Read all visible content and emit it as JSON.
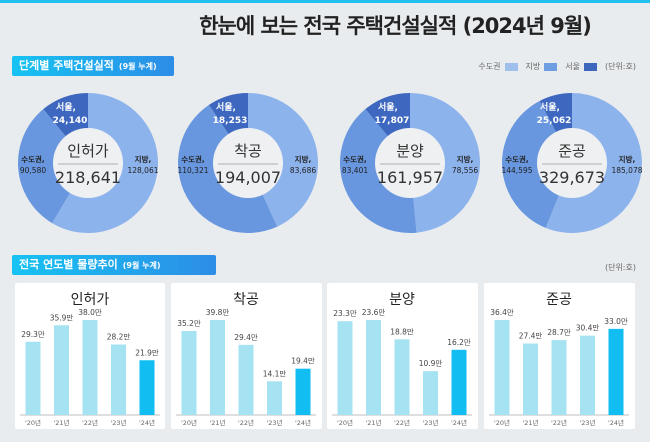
{
  "title": "한눈에 보는 전국 주택건설실적  (2024년 9월)",
  "section1": {
    "label": "단계별 주택건설실적",
    "sub": "(9월 누계)"
  },
  "section2": {
    "label": "전국 연도별 물량추이",
    "sub": "(9월 누계)"
  },
  "legend": [
    {
      "label": "수도권",
      "color": "#9fc0ec"
    },
    {
      "label": "지방",
      "color": "#6f9de2"
    },
    {
      "label": "서울",
      "color": "#3d66bd"
    }
  ],
  "unit": "(단위:호)",
  "colors": {
    "jibang": "#8db3ec",
    "sudo": "#6897df",
    "seoul": "#3e68c0",
    "bar": "#a6e3f2",
    "bar_current": "#12bdf2"
  },
  "chart_data": [
    {
      "type": "pie",
      "title": "인허가",
      "total": "218,641",
      "slices": [
        {
          "name": "지방",
          "value": 128061,
          "label": "128,061"
        },
        {
          "name": "수도권",
          "value": 90580,
          "label": "90,580"
        },
        {
          "name": "서울",
          "value": 24140,
          "label": "24,140"
        }
      ]
    },
    {
      "type": "pie",
      "title": "착공",
      "total": "194,007",
      "slices": [
        {
          "name": "지방",
          "value": 83686,
          "label": "83,686"
        },
        {
          "name": "수도권",
          "value": 110321,
          "label": "110,321"
        },
        {
          "name": "서울",
          "value": 18253,
          "label": "18,253"
        }
      ]
    },
    {
      "type": "pie",
      "title": "분양",
      "total": "161,957",
      "slices": [
        {
          "name": "지방",
          "value": 78556,
          "label": "78,556"
        },
        {
          "name": "수도권",
          "value": 83401,
          "label": "83,401"
        },
        {
          "name": "서울",
          "value": 17807,
          "label": "17,807"
        }
      ]
    },
    {
      "type": "pie",
      "title": "준공",
      "total": "329,673",
      "slices": [
        {
          "name": "지방",
          "value": 185078,
          "label": "185,078"
        },
        {
          "name": "수도권",
          "value": 144595,
          "label": "144,595"
        },
        {
          "name": "서울",
          "value": 25062,
          "label": "25,062"
        }
      ]
    },
    {
      "type": "bar",
      "title": "인허가",
      "categories": [
        "'20년",
        "'21년",
        "'22년",
        "'23년",
        "'24년"
      ],
      "values": [
        29.3,
        35.9,
        38.0,
        28.2,
        21.9
      ],
      "value_suffix": "만"
    },
    {
      "type": "bar",
      "title": "착공",
      "categories": [
        "'20년",
        "'21년",
        "'22년",
        "'23년",
        "'24년"
      ],
      "values": [
        35.2,
        39.8,
        29.4,
        14.1,
        19.4
      ],
      "value_suffix": "만"
    },
    {
      "type": "bar",
      "title": "분양",
      "categories": [
        "'20년",
        "'21년",
        "'22년",
        "'23년",
        "'24년"
      ],
      "values": [
        23.3,
        23.6,
        18.8,
        10.9,
        16.2
      ],
      "value_suffix": "만"
    },
    {
      "type": "bar",
      "title": "준공",
      "categories": [
        "'20년",
        "'21년",
        "'22년",
        "'23년",
        "'24년"
      ],
      "values": [
        36.4,
        27.4,
        28.7,
        30.4,
        33.0
      ],
      "value_suffix": "만"
    }
  ]
}
